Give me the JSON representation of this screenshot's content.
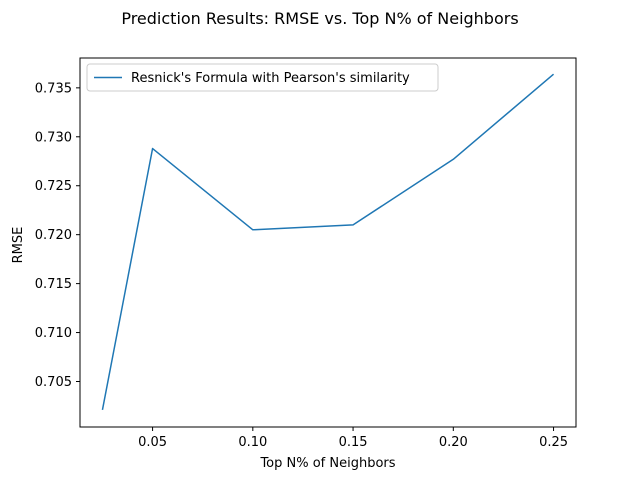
{
  "chart_data": {
    "type": "line",
    "title": "Prediction Results: RMSE vs. Top N% of Neighbors",
    "xlabel": "Top N% of Neighbors",
    "ylabel": "RMSE",
    "x": [
      0.025,
      0.05,
      0.1,
      0.15,
      0.2,
      0.25
    ],
    "xlim": [
      0.0138,
      0.2612
    ],
    "ylim": [
      0.70035,
      0.73805
    ],
    "xticks": [
      0.05,
      0.1,
      0.15,
      0.2,
      0.25
    ],
    "xtick_labels": [
      "0.05",
      "0.10",
      "0.15",
      "0.20",
      "0.25"
    ],
    "yticks": [
      0.705,
      0.71,
      0.715,
      0.72,
      0.725,
      0.73,
      0.735
    ],
    "ytick_labels": [
      "0.705",
      "0.710",
      "0.715",
      "0.720",
      "0.725",
      "0.730",
      "0.735"
    ],
    "grid": false,
    "legend_position": "top-left",
    "series": [
      {
        "name": "Resnick's Formula with Pearson's similarity",
        "color": "#1f77b4",
        "values": [
          0.7021,
          0.7288,
          0.7205,
          0.721,
          0.7277,
          0.7364
        ]
      }
    ]
  }
}
